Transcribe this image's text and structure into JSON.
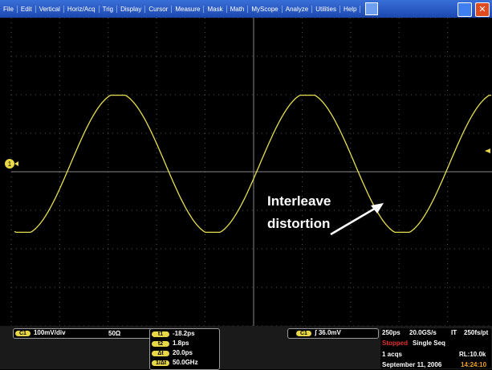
{
  "menu": {
    "items": [
      "File",
      "Edit",
      "Vertical",
      "Horiz/Acq",
      "Trig",
      "Display",
      "Cursor",
      "Measure",
      "Mask",
      "Math",
      "MyScope",
      "Analyze",
      "Utilities",
      "Help"
    ]
  },
  "screen": {
    "channel_marker": "1",
    "annotation": [
      "Interleave",
      "distortion"
    ]
  },
  "vertical": {
    "channel": "C1",
    "scale": "100mV/div",
    "termination": "50Ω"
  },
  "cursors": [
    {
      "label": "t1",
      "value": "-18.2ps"
    },
    {
      "label": "t2",
      "value": "1.8ps"
    },
    {
      "label": "Δt",
      "value": "20.0ps"
    },
    {
      "label": "1/Δt",
      "value": "50.0GHz"
    }
  ],
  "trigger": {
    "channel": "C1",
    "level": "36.0mV"
  },
  "acquisition": {
    "timebase": "250ps",
    "sample_rate": "20.0GS/s",
    "mode": "IT",
    "resolution": "250fs/pt",
    "state": "Stopped",
    "sequence": "Single Seq",
    "acqs": "1 acqs",
    "record_length": "RL:10.0k",
    "date": "September 11, 2006",
    "time": "14:24:10"
  }
}
